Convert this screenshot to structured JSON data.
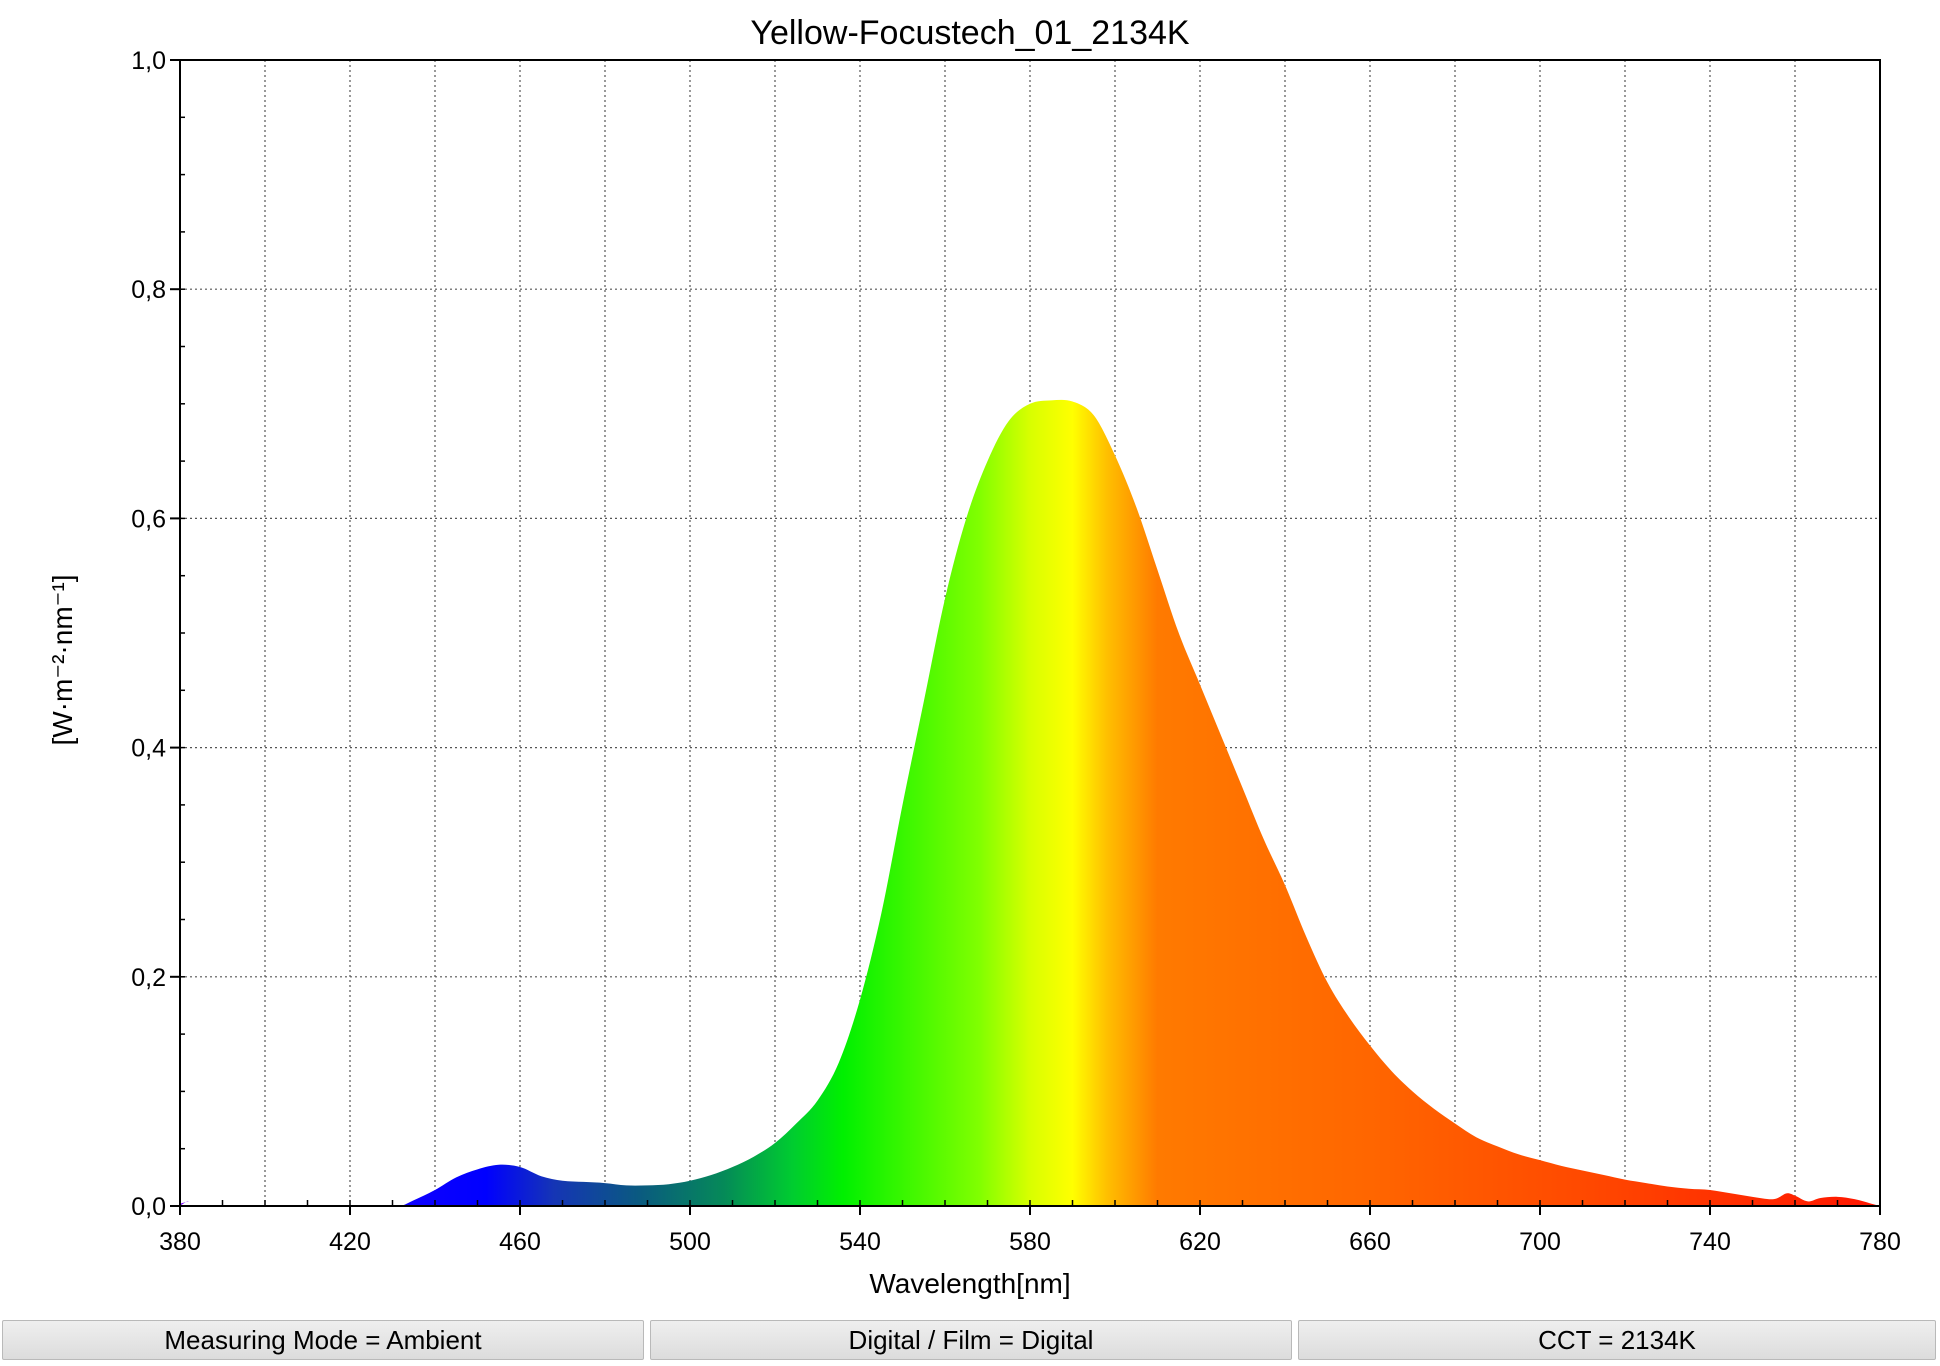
{
  "chart_data": {
    "type": "area",
    "title": "Yellow-Focustech_01_2134K",
    "xlabel": "Wavelength[nm]",
    "ylabel": "[W·m⁻²·nm⁻¹]",
    "xlim": [
      380,
      780
    ],
    "ylim": [
      0,
      1.0
    ],
    "x_ticks": [
      380,
      420,
      460,
      500,
      540,
      580,
      620,
      660,
      700,
      740,
      780
    ],
    "x_tick_labels": [
      "380",
      "420",
      "460",
      "500",
      "540",
      "580",
      "620",
      "660",
      "700",
      "740",
      "780"
    ],
    "y_ticks": [
      0,
      0.2,
      0.4,
      0.6,
      0.8,
      1.0
    ],
    "y_tick_labels": [
      "0,0",
      "0,2",
      "0,4",
      "0,6",
      "0,8",
      "1,0"
    ],
    "grid": true,
    "fill": "visible-spectrum-gradient",
    "series": [
      {
        "x": [
          380,
          382,
          384,
          430,
          432,
          435,
          440,
          445,
          450,
          455,
          460,
          465,
          470,
          475,
          480,
          485,
          490,
          495,
          500,
          505,
          510,
          515,
          520,
          525,
          530,
          535,
          540,
          545,
          550,
          555,
          560,
          565,
          570,
          575,
          580,
          585,
          590,
          595,
          600,
          605,
          610,
          615,
          620,
          625,
          630,
          635,
          640,
          645,
          650,
          655,
          660,
          665,
          670,
          675,
          680,
          685,
          690,
          695,
          700,
          705,
          710,
          715,
          720,
          725,
          730,
          735,
          740,
          745,
          750,
          755,
          758,
          760,
          763,
          766,
          770,
          774,
          778,
          780
        ],
        "y": [
          0.0,
          0.004,
          0.0,
          0.0,
          0.0,
          0.005,
          0.014,
          0.025,
          0.032,
          0.036,
          0.034,
          0.026,
          0.022,
          0.021,
          0.02,
          0.018,
          0.018,
          0.019,
          0.022,
          0.027,
          0.034,
          0.043,
          0.055,
          0.072,
          0.092,
          0.125,
          0.18,
          0.255,
          0.35,
          0.44,
          0.53,
          0.6,
          0.65,
          0.685,
          0.7,
          0.703,
          0.702,
          0.69,
          0.655,
          0.61,
          0.555,
          0.5,
          0.455,
          0.41,
          0.365,
          0.32,
          0.28,
          0.235,
          0.195,
          0.165,
          0.14,
          0.118,
          0.1,
          0.085,
          0.072,
          0.06,
          0.052,
          0.045,
          0.04,
          0.035,
          0.031,
          0.027,
          0.023,
          0.02,
          0.017,
          0.015,
          0.014,
          0.011,
          0.008,
          0.006,
          0.011,
          0.009,
          0.004,
          0.007,
          0.008,
          0.006,
          0.002,
          0.0
        ]
      }
    ]
  },
  "status_bar": {
    "measuring_mode": "Measuring Mode = Ambient",
    "digital_film": "Digital / Film = Digital",
    "cct": "CCT = 2134K"
  }
}
